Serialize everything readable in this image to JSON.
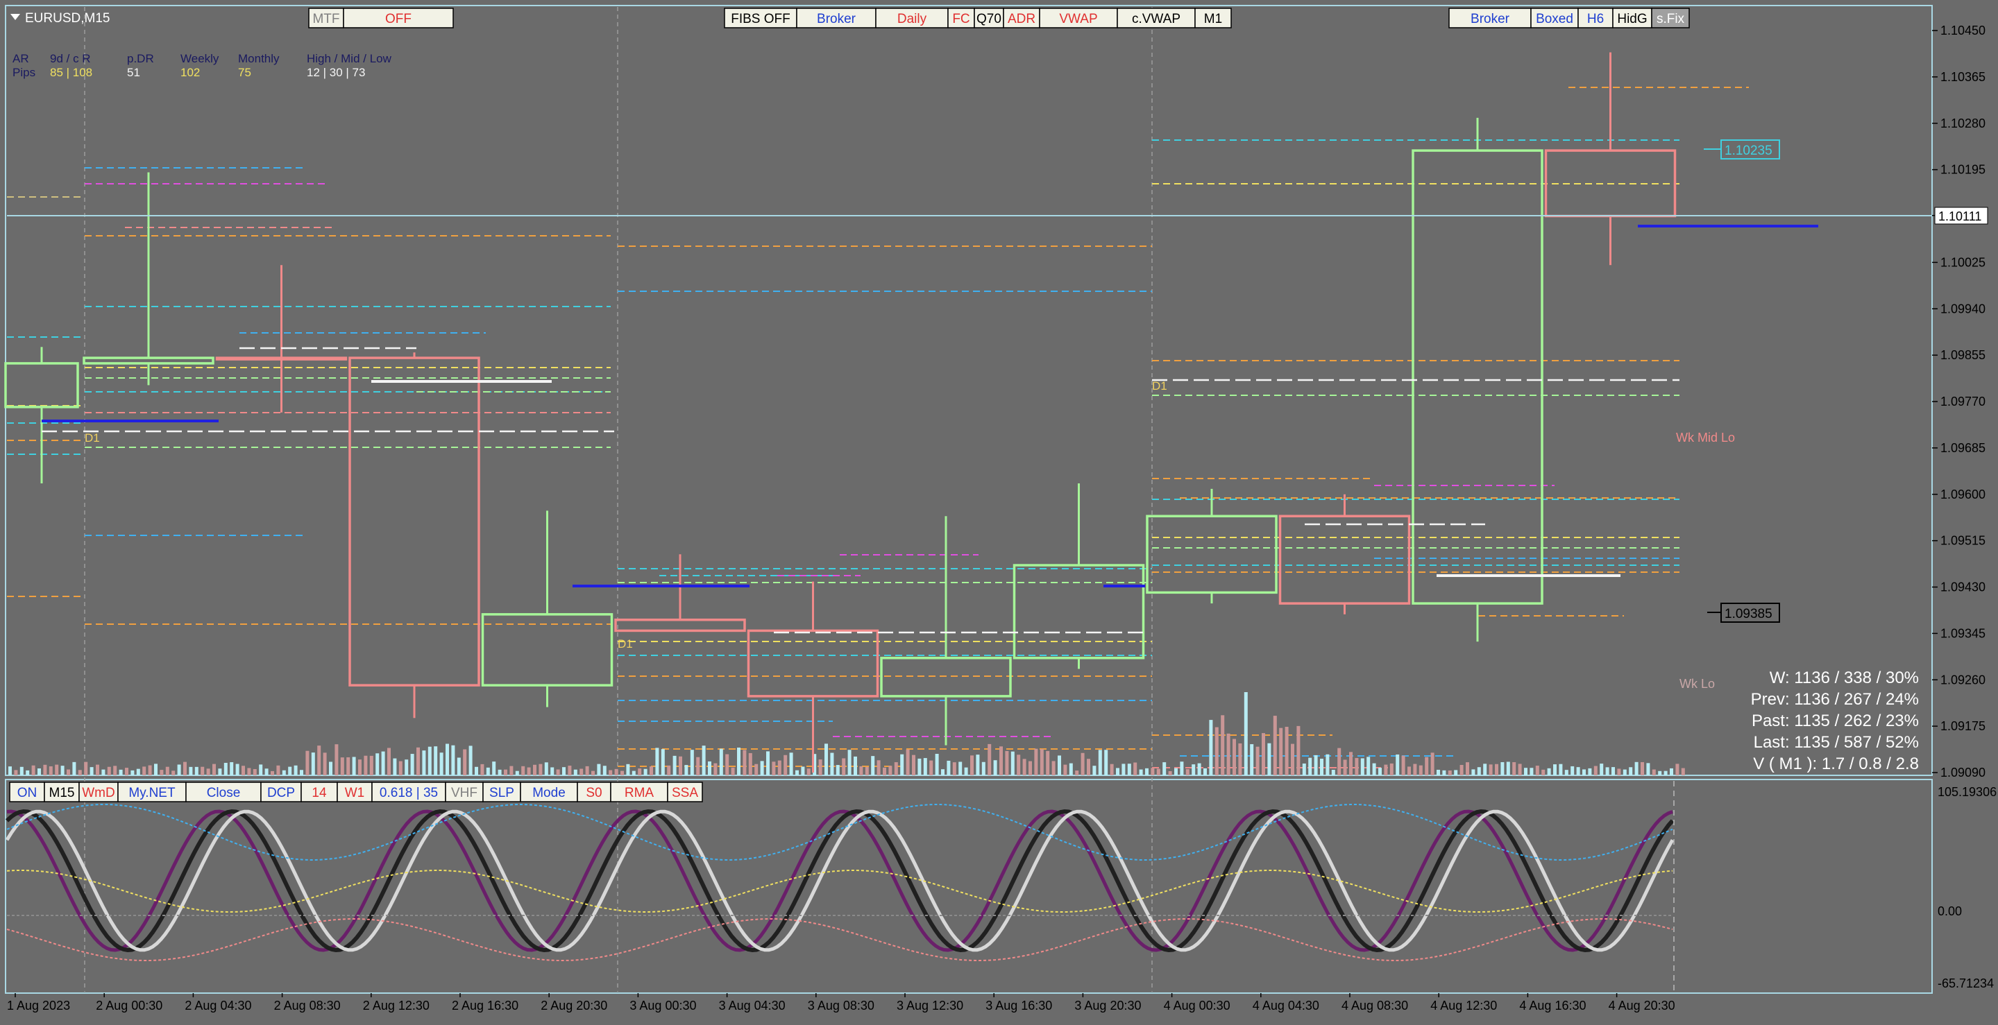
{
  "symbol": "EURUSD,M15",
  "toolbar_left": [
    {
      "label": "MTF",
      "color": "#808080"
    },
    {
      "label": "OFF",
      "color": "#e03030"
    }
  ],
  "toolbar_center": [
    {
      "label": "FIBS OFF",
      "color": "#000000"
    },
    {
      "label": "Broker",
      "color": "#1f3fd0"
    },
    {
      "label": "Daily",
      "color": "#e03030"
    },
    {
      "label": "FC",
      "color": "#e03030"
    },
    {
      "label": "Q70",
      "color": "#000000"
    },
    {
      "label": "ADR",
      "color": "#e03030"
    },
    {
      "label": "VWAP",
      "color": "#e03030"
    },
    {
      "label": "c.VWAP",
      "color": "#000000"
    },
    {
      "label": "M1",
      "color": "#000000"
    }
  ],
  "toolbar_right": [
    {
      "label": "Broker",
      "color": "#1f3fd0"
    },
    {
      "label": "Boxed",
      "color": "#1f3fd0"
    },
    {
      "label": "H6",
      "color": "#1f3fd0"
    },
    {
      "label": "HidG",
      "color": "#000000"
    },
    {
      "label": "s.Fix",
      "color": "#ffffff"
    }
  ],
  "stats_table": {
    "rows": [
      [
        "AR",
        "9d / c R",
        "p.DR",
        "Weekly",
        "Monthly",
        "High / Mid / Low"
      ],
      [
        "Pips",
        "85 | 108",
        "51",
        "102",
        "75",
        "12 | 30 | 73"
      ]
    ]
  },
  "price_axis": [
    "1.10450",
    "1.10365",
    "1.10280",
    "1.10195",
    "1.10111",
    "1.10025",
    "1.09940",
    "1.09855",
    "1.09770",
    "1.09685",
    "1.09600",
    "1.09515",
    "1.09430",
    "1.09345",
    "1.09260",
    "1.09175",
    "1.09090"
  ],
  "current_price": "1.10111",
  "price_tags": {
    "upper": "1.10235",
    "lower": "1.09385"
  },
  "level_labels": {
    "d1_a": "D1",
    "d1_b": "D1",
    "d1_c": "D1",
    "wk_mid_lo": "Wk Mid Lo",
    "wk_lo": "Wk Lo"
  },
  "stats_box": [
    "W: 1136 / 338 / 30%",
    "Prev: 1136 / 267 / 24%",
    "Past: 1135 / 262 / 23%",
    "Last: 1135 / 587 / 52%",
    "V ( M1 ): 1.7 / 0.8 / 2.8"
  ],
  "indicator_bar": [
    {
      "label": "ON",
      "color": "#1f3fd0"
    },
    {
      "label": "M15",
      "color": "#000000"
    },
    {
      "label": "WmD",
      "color": "#e03030"
    },
    {
      "label": "My.NET",
      "color": "#1f3fd0"
    },
    {
      "label": "Close",
      "color": "#1f3fd0"
    },
    {
      "label": "DCP",
      "color": "#1f3fd0"
    },
    {
      "label": "14",
      "color": "#e03030"
    },
    {
      "label": "W1",
      "color": "#e03030"
    },
    {
      "label": "0.618 | 35",
      "color": "#1f3fd0"
    },
    {
      "label": "VHF",
      "color": "#808080"
    },
    {
      "label": "SLP",
      "color": "#1f3fd0"
    },
    {
      "label": "Mode",
      "color": "#1f3fd0"
    },
    {
      "label": "S0",
      "color": "#e03030"
    },
    {
      "label": "RMA",
      "color": "#e03030"
    },
    {
      "label": "SSA",
      "color": "#e03030"
    }
  ],
  "indicator_axis": [
    "105.19306",
    "0.00",
    "-65.71234"
  ],
  "time_axis": [
    "1 Aug 2023",
    "2 Aug 00:30",
    "2 Aug 04:30",
    "2 Aug 08:30",
    "2 Aug 12:30",
    "2 Aug 16:30",
    "2 Aug 20:30",
    "3 Aug 00:30",
    "3 Aug 04:30",
    "3 Aug 08:30",
    "3 Aug 12:30",
    "3 Aug 16:30",
    "3 Aug 20:30",
    "4 Aug 00:30",
    "4 Aug 04:30",
    "4 Aug 08:30",
    "4 Aug 12:30",
    "4 Aug 16:30",
    "4 Aug 20:30"
  ],
  "candles": [
    {
      "o": 1.0976,
      "h": 1.0987,
      "l": 1.0962,
      "c": 1.0984,
      "color": "#a6f598"
    },
    {
      "o": 1.0984,
      "h": 1.1019,
      "l": 1.098,
      "c": 1.0985,
      "color": "#a6f598"
    },
    {
      "o": 1.0985,
      "h": 1.1002,
      "l": 1.0975,
      "c": 1.0985,
      "color": "#f08a8a"
    },
    {
      "o": 1.0985,
      "h": 1.0986,
      "l": 1.0919,
      "c": 1.0925,
      "color": "#f08a8a"
    },
    {
      "o": 1.0925,
      "h": 1.0957,
      "l": 1.0921,
      "c": 1.0938,
      "color": "#a6f598"
    },
    {
      "o": 1.0937,
      "h": 1.0949,
      "l": 1.0935,
      "c": 1.0935,
      "color": "#f08a8a"
    },
    {
      "o": 1.0935,
      "h": 1.0944,
      "l": 1.0909,
      "c": 1.0923,
      "color": "#f08a8a"
    },
    {
      "o": 1.0923,
      "h": 1.0956,
      "l": 1.0914,
      "c": 1.093,
      "color": "#a6f598"
    },
    {
      "o": 1.093,
      "h": 1.0962,
      "l": 1.0928,
      "c": 1.0947,
      "color": "#a6f598"
    },
    {
      "o": 1.0942,
      "h": 1.0961,
      "l": 1.094,
      "c": 1.0956,
      "color": "#a6f598"
    },
    {
      "o": 1.0956,
      "h": 1.096,
      "l": 1.0938,
      "c": 1.094,
      "color": "#f08a8a"
    },
    {
      "o": 1.094,
      "h": 1.1029,
      "l": 1.0933,
      "c": 1.1023,
      "color": "#a6f598"
    },
    {
      "o": 1.1023,
      "h": 1.1041,
      "l": 1.1002,
      "c": 1.1011,
      "color": "#f08a8a"
    }
  ]
}
